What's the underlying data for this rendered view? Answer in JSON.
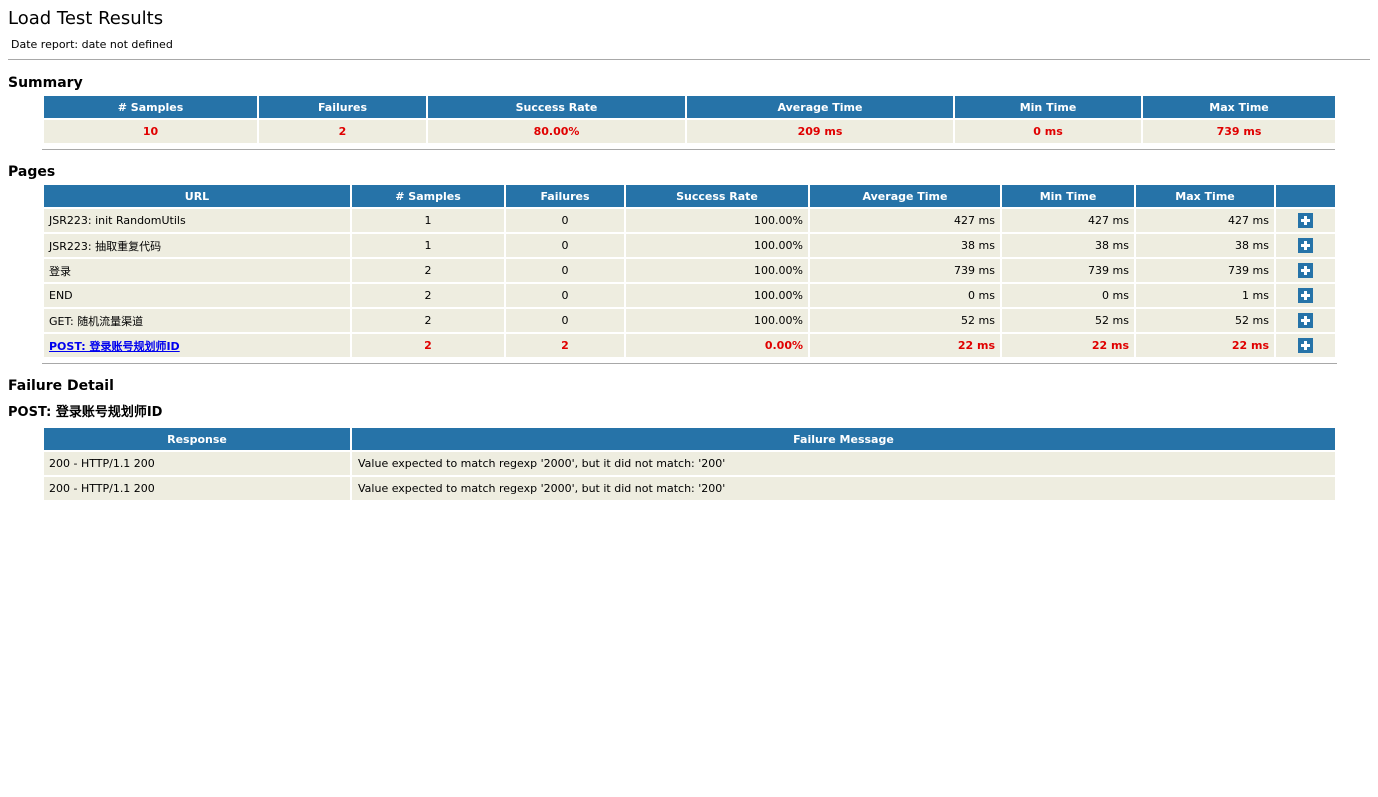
{
  "header": {
    "title": "Load Test Results",
    "date_line": "Date report: date not defined"
  },
  "summary": {
    "heading": "Summary",
    "columns": [
      "# Samples",
      "Failures",
      "Success Rate",
      "Average Time",
      "Min Time",
      "Max Time"
    ],
    "values": [
      "10",
      "2",
      "80.00%",
      "209 ms",
      "0 ms",
      "739 ms"
    ],
    "status_color": "#e00000"
  },
  "pages": {
    "heading": "Pages",
    "columns": [
      "URL",
      "# Samples",
      "Failures",
      "Success Rate",
      "Average Time",
      "Min Time",
      "Max Time",
      ""
    ],
    "rows": [
      {
        "url": "JSR223: init RandomUtils",
        "samples": "1",
        "failures": "0",
        "success": "100.00%",
        "avg": "427 ms",
        "min": "427 ms",
        "max": "427 ms",
        "failed": false
      },
      {
        "url": "JSR223: 抽取重复代码",
        "samples": "1",
        "failures": "0",
        "success": "100.00%",
        "avg": "38 ms",
        "min": "38 ms",
        "max": "38 ms",
        "failed": false
      },
      {
        "url": "登录",
        "samples": "2",
        "failures": "0",
        "success": "100.00%",
        "avg": "739 ms",
        "min": "739 ms",
        "max": "739 ms",
        "failed": false
      },
      {
        "url": "END",
        "samples": "2",
        "failures": "0",
        "success": "100.00%",
        "avg": "0 ms",
        "min": "0 ms",
        "max": "1 ms",
        "failed": false
      },
      {
        "url": "GET: 随机流量渠道",
        "samples": "2",
        "failures": "0",
        "success": "100.00%",
        "avg": "52 ms",
        "min": "52 ms",
        "max": "52 ms",
        "failed": false
      },
      {
        "url": "POST: 登录账号规划师ID",
        "samples": "2",
        "failures": "2",
        "success": "0.00%",
        "avg": "22 ms",
        "min": "22 ms",
        "max": "22 ms",
        "failed": true
      }
    ],
    "expand_icon": "plus-icon"
  },
  "failure_detail": {
    "heading": "Failure Detail",
    "subheading": "POST: 登录账号规划师ID",
    "columns": [
      "Response",
      "Failure Message"
    ],
    "rows": [
      {
        "response": "200 - HTTP/1.1 200",
        "message": "Value expected to match regexp '2000', but it did not match: '200'"
      },
      {
        "response": "200 - HTTP/1.1 200",
        "message": "Value expected to match regexp '2000', but it did not match: '200'"
      }
    ]
  },
  "colors": {
    "header_bg": "#2673a8",
    "cell_bg": "#eeede0",
    "failure_text": "#e00000",
    "link": "#0000ee"
  }
}
